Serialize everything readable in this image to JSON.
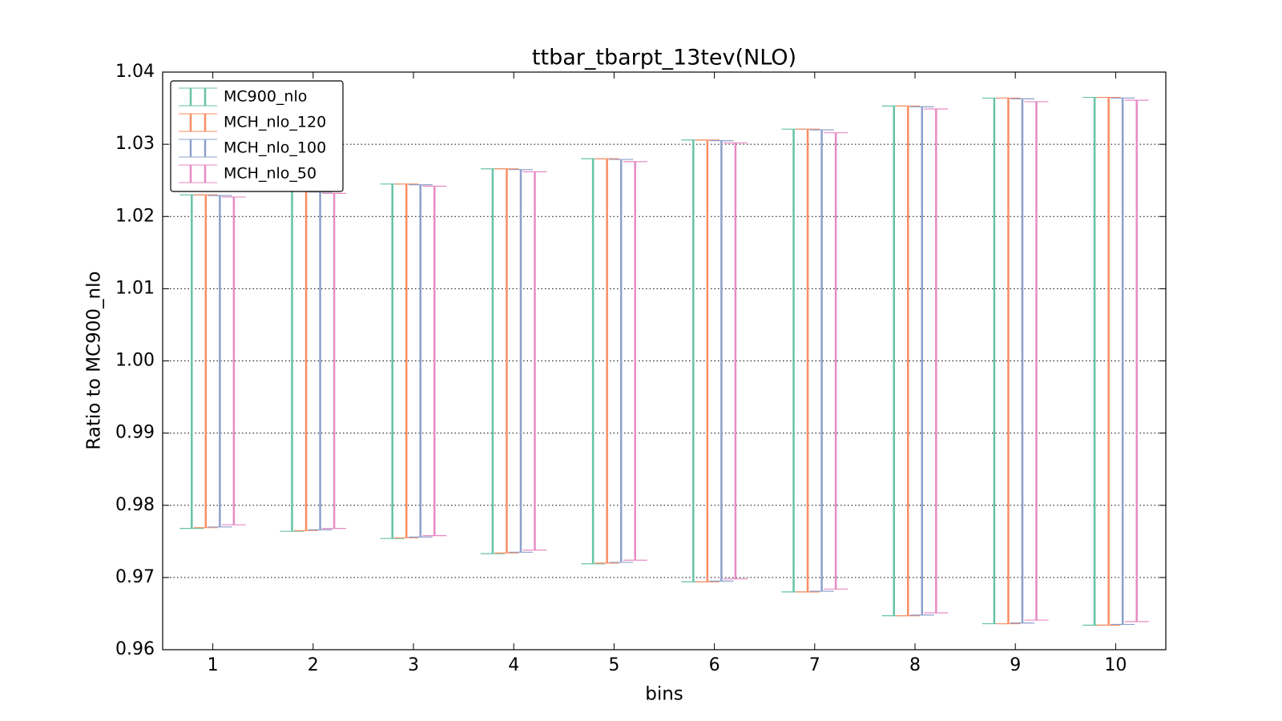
{
  "chart_data": {
    "type": "errorbar",
    "title": "ttbar_tbarpt_13tev(NLO)",
    "xlabel": "bins",
    "ylabel": "Ratio to MC900_nlo",
    "xlim": [
      0.5,
      10.5
    ],
    "xticks": [
      1,
      2,
      3,
      4,
      5,
      6,
      7,
      8,
      9,
      10
    ],
    "ylim": [
      0.96,
      1.04
    ],
    "yticks": [
      0.96,
      0.97,
      0.98,
      0.99,
      {
        "value": 1,
        "label": "1.00"
      },
      1.01,
      1.02,
      1.03,
      1.04
    ],
    "grid": true,
    "legend": "upper left",
    "x": [
      1,
      2,
      3,
      4,
      5,
      6,
      7,
      8,
      9,
      10
    ],
    "series": [
      {
        "name": "MC900_nlo",
        "color": "#66c2a5",
        "high": [
          1.023,
          1.0235,
          1.0245,
          1.0266,
          1.028,
          1.0306,
          1.0321,
          1.0353,
          1.0364,
          1.0365
        ],
        "low": [
          0.9768,
          0.9764,
          0.9754,
          0.9733,
          0.9719,
          0.9694,
          0.968,
          0.9647,
          0.9636,
          0.9634
        ]
      },
      {
        "name": "MCH_nlo_120",
        "color": "#fc8d62",
        "high": [
          1.023,
          1.0235,
          1.0245,
          1.0266,
          1.028,
          1.0306,
          1.0321,
          1.0353,
          1.0364,
          1.0365
        ],
        "low": [
          0.9769,
          0.9765,
          0.9755,
          0.9734,
          0.972,
          0.9694,
          0.968,
          0.9647,
          0.9636,
          0.9634
        ]
      },
      {
        "name": "MCH_nlo_100",
        "color": "#8da0cb",
        "high": [
          1.0229,
          1.0234,
          1.0244,
          1.0265,
          1.0279,
          1.0305,
          1.032,
          1.0352,
          1.0363,
          1.0364
        ],
        "low": [
          0.977,
          0.9766,
          0.9756,
          0.9735,
          0.9721,
          0.9695,
          0.9681,
          0.9648,
          0.9637,
          0.9635
        ]
      },
      {
        "name": "MCH_nlo_50",
        "color": "#e78ac3",
        "high": [
          1.0227,
          1.0232,
          1.0242,
          1.0262,
          1.0276,
          1.0302,
          1.0316,
          1.0349,
          1.0359,
          1.0361
        ],
        "low": [
          0.9773,
          0.9768,
          0.9758,
          0.9738,
          0.9724,
          0.9698,
          0.9684,
          0.9651,
          0.9641,
          0.9639
        ]
      }
    ]
  }
}
